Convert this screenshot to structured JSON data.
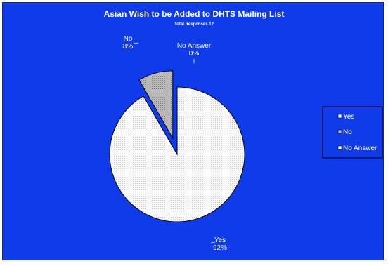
{
  "chart_data": {
    "type": "pie",
    "title": "Asian Wish to be Added to DHTS Mailing List",
    "subtitle": "Total Responses 12",
    "slices": [
      {
        "label": "Yes",
        "percent_label": "92%",
        "value": 11,
        "color": "#f4f4f4",
        "pattern": "dotted",
        "exploded": false
      },
      {
        "label": "No",
        "percent_label": "8%",
        "value": 1,
        "color": "#b4b4b4",
        "pattern": "dotted",
        "exploded": true
      },
      {
        "label": "No Answer",
        "percent_label": "0%",
        "value": 0,
        "color": "#ffffff",
        "pattern": "none",
        "exploded": false
      }
    ],
    "legend": {
      "position": "right",
      "items": [
        "Yes",
        "No",
        "No Answer"
      ]
    }
  },
  "colors": {
    "background": "#0f3ce8",
    "frame": "#0a2a8a",
    "text": "#ffffff"
  }
}
